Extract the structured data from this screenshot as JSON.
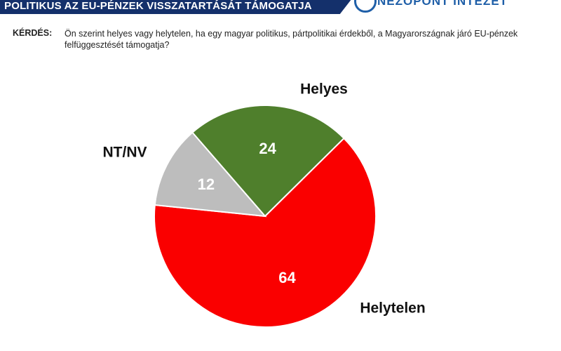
{
  "chart_data": {
    "type": "pie",
    "title": "POLITIKUS AZ EU-PÉNZEK VISSZATARTÁSÁT TÁMOGATJA",
    "logo": "NÉZŐPONT INTÉZET",
    "question_label": "KÉRDÉS:",
    "question": "Ön szerint helyes vagy helytelen, ha egy magyar politikus, pártpolitikai érdekből, a Magyarországnak járó EU-pénzek felfüggesztését támogatja?",
    "categories": [
      "Helyes",
      "Helytelen",
      "NT/NV"
    ],
    "values": [
      24,
      64,
      12
    ],
    "colors": [
      "#4f7f2c",
      "#fa0000",
      "#bdbdbd"
    ]
  }
}
